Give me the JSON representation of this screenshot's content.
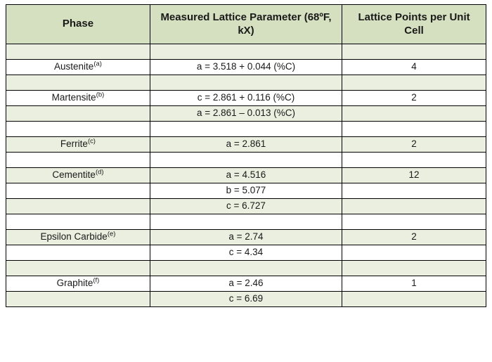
{
  "table": {
    "background_color": "#ffffff",
    "shaded_color": "#eaefdf",
    "header_bg": "#d4e0bf",
    "border_color": "#000000",
    "text_color": "#1a1a1a",
    "header_fontsize_pt": 11,
    "body_fontsize_pt": 10,
    "columns": [
      {
        "label": "Phase",
        "width_pct": 30
      },
      {
        "label": "Measured Lattice Parameter (68ºF, kX)",
        "width_pct": 40
      },
      {
        "label": "Lattice Points per Unit Cell",
        "width_pct": 30
      }
    ],
    "rows": [
      {
        "shaded": true,
        "phase": "",
        "sup": "",
        "param": "",
        "points": ""
      },
      {
        "shaded": false,
        "phase": "Austenite",
        "sup": "(a)",
        "param": "a = 3.518 + 0.044 (%C)",
        "points": "4"
      },
      {
        "shaded": true,
        "phase": "",
        "sup": "",
        "param": "",
        "points": ""
      },
      {
        "shaded": false,
        "phase": "Martensite",
        "sup": "(b)",
        "param": "c = 2.861 + 0.116 (%C)",
        "points": "2"
      },
      {
        "shaded": true,
        "phase": "",
        "sup": "",
        "param": "a = 2.861 – 0.013 (%C)",
        "points": ""
      },
      {
        "shaded": false,
        "phase": "",
        "sup": "",
        "param": "",
        "points": ""
      },
      {
        "shaded": true,
        "phase": "Ferrite",
        "sup": "(c)",
        "param": "a = 2.861",
        "points": "2"
      },
      {
        "shaded": false,
        "phase": "",
        "sup": "",
        "param": "",
        "points": ""
      },
      {
        "shaded": true,
        "phase": "Cementite",
        "sup": "(d)",
        "param": "a = 4.516",
        "points": "12"
      },
      {
        "shaded": false,
        "phase": "",
        "sup": "",
        "param": "b = 5.077",
        "points": ""
      },
      {
        "shaded": true,
        "phase": "",
        "sup": "",
        "param": "c = 6.727",
        "points": ""
      },
      {
        "shaded": false,
        "phase": "",
        "sup": "",
        "param": "",
        "points": ""
      },
      {
        "shaded": true,
        "phase": "Epsilon Carbide",
        "sup": "(e)",
        "param": "a = 2.74",
        "points": "2"
      },
      {
        "shaded": false,
        "phase": "",
        "sup": "",
        "param": "c = 4.34",
        "points": ""
      },
      {
        "shaded": true,
        "phase": "",
        "sup": "",
        "param": "",
        "points": ""
      },
      {
        "shaded": false,
        "phase": "Graphite",
        "sup": "(f)",
        "param": "a = 2.46",
        "points": "1"
      },
      {
        "shaded": true,
        "phase": "",
        "sup": "",
        "param": "c = 6.69",
        "points": ""
      }
    ]
  }
}
